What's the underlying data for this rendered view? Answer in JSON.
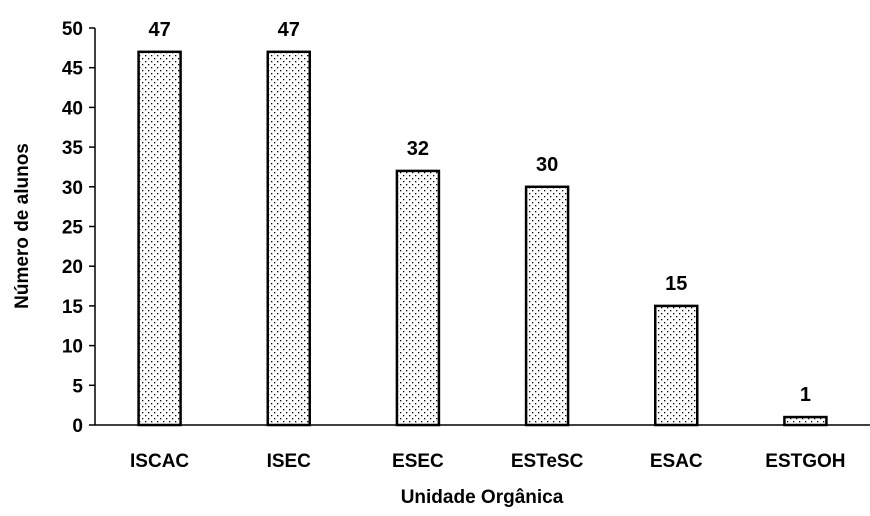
{
  "chart_data": {
    "type": "bar",
    "categories": [
      "ISCAC",
      "ISEC",
      "ESEC",
      "ESTeSC",
      "ESAC",
      "ESTGOH"
    ],
    "values": [
      47,
      47,
      32,
      30,
      15,
      1
    ],
    "data_labels": [
      "47",
      "47",
      "32",
      "30",
      "15",
      "1"
    ],
    "xlabel": "Unidade Orgânica",
    "ylabel": "Número de alunos",
    "ylim": [
      0,
      50
    ],
    "yticks": [
      0,
      5,
      10,
      15,
      20,
      25,
      30,
      35,
      40,
      45,
      50
    ],
    "grid": false,
    "legend": "none",
    "bar_fill": "dotted pattern",
    "colors": {
      "bar_edge": "#000000",
      "bar_fill": "#ffffff",
      "dots": "#000000",
      "axis": "#000000"
    }
  }
}
